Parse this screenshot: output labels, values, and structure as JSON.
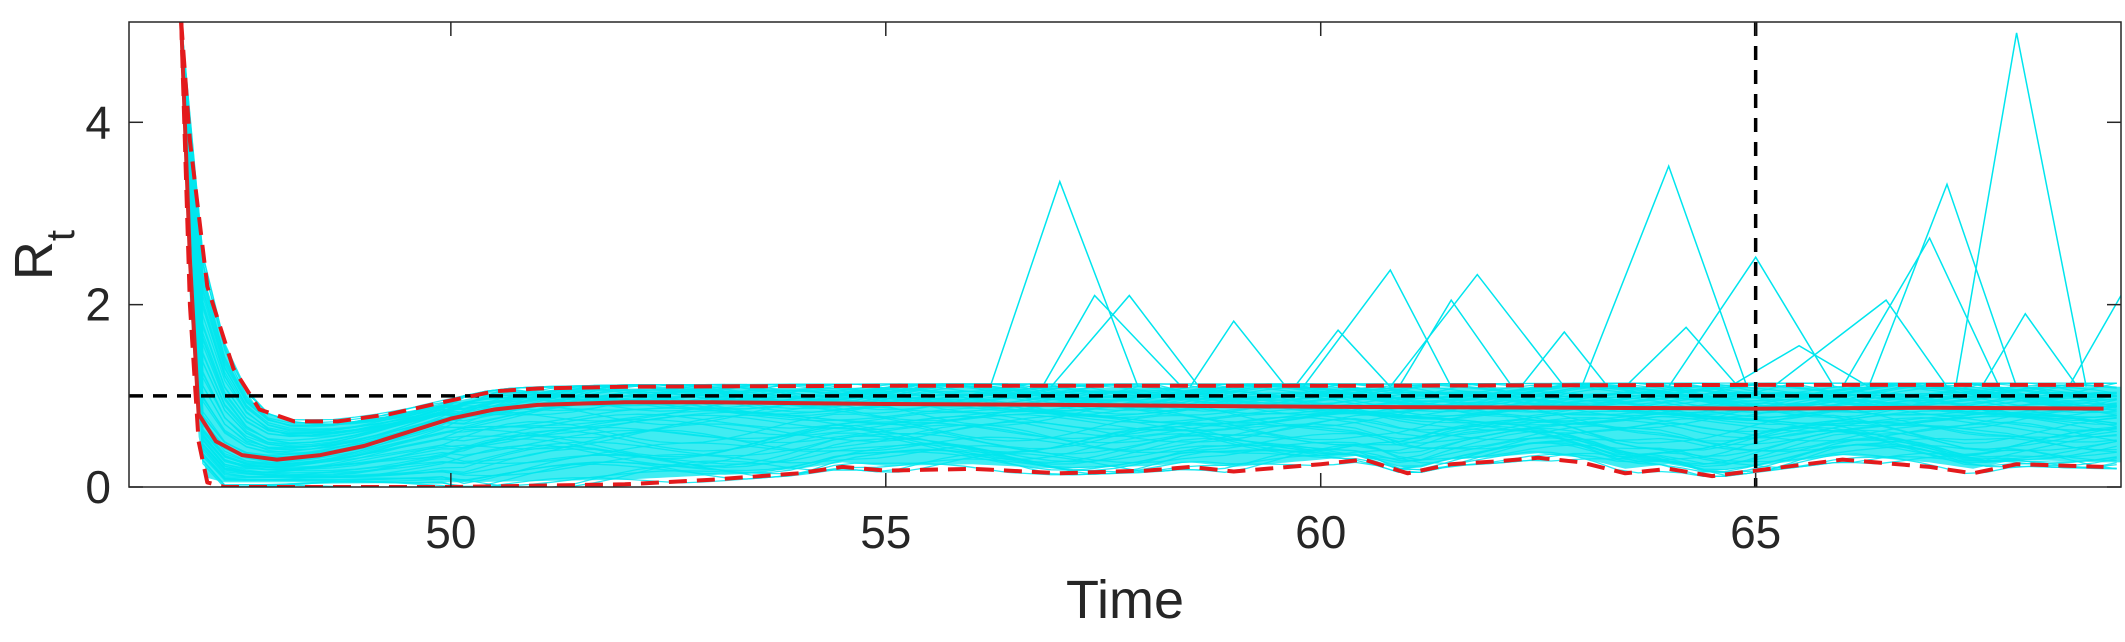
{
  "chart_data": {
    "type": "line",
    "xlabel": "Time",
    "ylabel": "R",
    "ylabel_subscript": "t",
    "xlim": [
      46.3,
      69.2
    ],
    "ylim": [
      0,
      5.1
    ],
    "xticks": [
      50,
      55,
      60,
      65
    ],
    "yticks": [
      0,
      2,
      4
    ],
    "grid": false,
    "reference_lines": [
      {
        "orientation": "horizontal",
        "value": 1,
        "color": "#000000",
        "style": "dashed"
      },
      {
        "orientation": "vertical",
        "value": 65,
        "color": "#000000",
        "style": "dashed"
      }
    ],
    "colors": {
      "samples": "#00e5ee",
      "mean": "#d62728",
      "bounds": "#e31a1c",
      "axes": "#262626"
    },
    "series": [
      {
        "role": "mean",
        "style": "solid",
        "x": [
          46.9,
          47.0,
          47.1,
          47.3,
          47.6,
          48.0,
          48.5,
          49.0,
          49.5,
          50.0,
          50.5,
          51.0,
          52.0,
          53.0,
          55.0,
          57.0,
          60.0,
          63.0,
          65.0,
          67.0,
          69.0
        ],
        "y": [
          5.1,
          2.5,
          0.8,
          0.5,
          0.35,
          0.3,
          0.35,
          0.45,
          0.6,
          0.75,
          0.85,
          0.9,
          0.93,
          0.93,
          0.91,
          0.9,
          0.88,
          0.87,
          0.86,
          0.87,
          0.86
        ]
      },
      {
        "role": "upper",
        "style": "dashed",
        "x": [
          46.9,
          47.0,
          47.2,
          47.5,
          47.8,
          48.2,
          48.7,
          49.3,
          50.0,
          50.5,
          51.0,
          52.0,
          55.0,
          60.0,
          65.0,
          69.0
        ],
        "y": [
          5.1,
          3.8,
          2.2,
          1.3,
          0.85,
          0.72,
          0.72,
          0.8,
          0.95,
          1.05,
          1.08,
          1.1,
          1.11,
          1.11,
          1.12,
          1.12
        ]
      },
      {
        "role": "lower",
        "style": "dashed",
        "x": [
          46.9,
          47.0,
          47.1,
          47.2,
          47.4,
          48.0,
          50.0,
          52.0,
          53.0,
          54.0,
          54.5,
          55.0,
          56.0,
          57.0,
          58.0,
          58.5,
          59.0,
          60.0,
          60.5,
          61.0,
          61.5,
          62.0,
          62.5,
          63.0,
          63.5,
          64.0,
          64.5,
          65.0,
          66.0,
          67.0,
          67.5,
          68.0,
          69.0
        ],
        "y": [
          5.1,
          2.0,
          0.5,
          0.05,
          0.0,
          0.0,
          0.0,
          0.03,
          0.08,
          0.15,
          0.22,
          0.18,
          0.2,
          0.15,
          0.18,
          0.22,
          0.17,
          0.25,
          0.3,
          0.15,
          0.25,
          0.28,
          0.32,
          0.27,
          0.15,
          0.2,
          0.12,
          0.18,
          0.3,
          0.22,
          0.15,
          0.25,
          0.22
        ]
      },
      {
        "role": "sample",
        "x": [
          56.2,
          57.0,
          57.9
        ],
        "y": [
          1.1,
          3.35,
          1.1
        ]
      },
      {
        "role": "sample",
        "x": [
          56.8,
          57.4,
          58.4
        ],
        "y": [
          1.1,
          2.1,
          1.1
        ]
      },
      {
        "role": "sample",
        "x": [
          56.9,
          57.8,
          58.6
        ],
        "y": [
          1.1,
          2.1,
          1.1
        ]
      },
      {
        "role": "sample",
        "x": [
          58.5,
          59.0,
          59.6
        ],
        "y": [
          1.1,
          1.82,
          1.1
        ]
      },
      {
        "role": "sample",
        "x": [
          59.8,
          60.8,
          61.5
        ],
        "y": [
          1.1,
          2.38,
          1.1
        ]
      },
      {
        "role": "sample",
        "x": [
          59.7,
          60.2,
          60.8
        ],
        "y": [
          1.1,
          1.72,
          1.1
        ]
      },
      {
        "role": "sample",
        "x": [
          60.8,
          61.8,
          62.8
        ],
        "y": [
          1.1,
          2.33,
          1.1
        ]
      },
      {
        "role": "sample",
        "x": [
          60.9,
          61.5,
          62.2
        ],
        "y": [
          1.1,
          2.05,
          1.1
        ]
      },
      {
        "role": "sample",
        "x": [
          62.3,
          62.8,
          63.3
        ],
        "y": [
          1.1,
          1.7,
          1.1
        ]
      },
      {
        "role": "sample",
        "x": [
          63.0,
          64.0,
          64.9
        ],
        "y": [
          1.1,
          3.52,
          1.1
        ]
      },
      {
        "role": "sample",
        "x": [
          63.5,
          64.2,
          64.8
        ],
        "y": [
          1.1,
          1.75,
          1.1
        ]
      },
      {
        "role": "sample",
        "x": [
          64.0,
          65.0,
          65.9
        ],
        "y": [
          1.1,
          2.52,
          1.1
        ]
      },
      {
        "role": "sample",
        "x": [
          64.7,
          65.5,
          66.3
        ],
        "y": [
          1.1,
          1.55,
          1.1
        ]
      },
      {
        "role": "sample",
        "x": [
          65.2,
          66.5,
          67.2
        ],
        "y": [
          1.1,
          2.05,
          1.1
        ]
      },
      {
        "role": "sample",
        "x": [
          66.0,
          67.0,
          67.8
        ],
        "y": [
          1.1,
          2.73,
          1.1
        ]
      },
      {
        "role": "sample",
        "x": [
          66.3,
          67.2,
          68.0
        ],
        "y": [
          1.1,
          3.32,
          1.1
        ]
      },
      {
        "role": "sample",
        "x": [
          67.3,
          68.0,
          68.8
        ],
        "y": [
          1.1,
          4.98,
          1.1
        ]
      },
      {
        "role": "sample",
        "x": [
          67.6,
          68.1,
          68.7
        ],
        "y": [
          1.1,
          1.9,
          1.1
        ]
      },
      {
        "role": "sample",
        "x": [
          68.6,
          69.2
        ],
        "y": [
          1.1,
          2.1
        ]
      }
    ]
  }
}
